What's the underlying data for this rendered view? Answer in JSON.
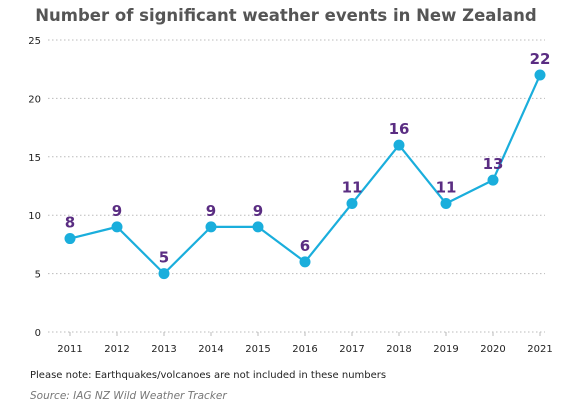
{
  "chart_data": {
    "type": "line",
    "title": "Number of significant weather events in New Zealand",
    "xlabel": "",
    "ylabel": "",
    "categories": [
      "2011",
      "2012",
      "2013",
      "2014",
      "2015",
      "2016",
      "2017",
      "2018",
      "2019",
      "2020",
      "2021"
    ],
    "series": [
      {
        "values": [
          8,
          9,
          5,
          9,
          9,
          6,
          11,
          16,
          11,
          13,
          22
        ]
      }
    ],
    "ylim": [
      0,
      25
    ],
    "yticks": [
      "0",
      "5",
      "10",
      "15",
      "20",
      "25"
    ],
    "grid": "dotted horizontal",
    "legend": "none",
    "colors": {
      "line": "#1aaedc",
      "label": "#5a2d82",
      "text": "#222222",
      "grid": "#bbbbbb"
    }
  },
  "note": "Please note: Earthquakes/volcanoes are not included in these numbers",
  "source": "Source: IAG NZ Wild Weather Tracker"
}
